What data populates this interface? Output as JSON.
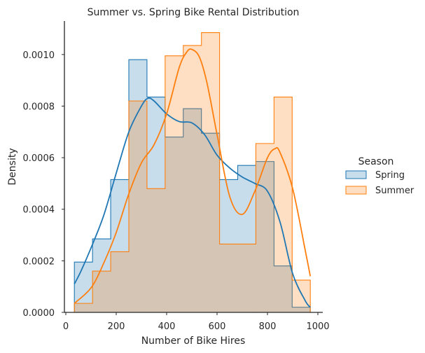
{
  "chart_data": {
    "type": "histogram",
    "title": "Summer vs. Spring Bike Rental Distribution",
    "xlabel": "Number of Bike Hires",
    "ylabel": "Density",
    "xlim": [
      0,
      1000
    ],
    "ylim": [
      0,
      0.00113
    ],
    "x_ticks": [
      0,
      200,
      400,
      600,
      800,
      1000
    ],
    "x_tick_labels": [
      "0",
      "200",
      "400",
      "600",
      "800",
      "1000"
    ],
    "y_ticks": [
      0,
      0.0002,
      0.0004,
      0.0006,
      0.0008,
      0.001
    ],
    "y_tick_labels": [
      "0.0000",
      "0.0002",
      "0.0004",
      "0.0006",
      "0.0008",
      "0.0010"
    ],
    "bin_edges": [
      34,
      106,
      178,
      250,
      322,
      394,
      466,
      538,
      610,
      682,
      754,
      826,
      898,
      970
    ],
    "legend": {
      "title": "Season",
      "placement": "right"
    },
    "grid": false,
    "series": [
      {
        "name": "Spring",
        "color": "#1f77b4",
        "hist_density": [
          0.000195,
          0.000285,
          0.000515,
          0.00098,
          0.000835,
          0.00068,
          0.00079,
          0.000695,
          0.000515,
          0.00057,
          0.000585,
          0.00018,
          2e-05
        ],
        "kde_x": [
          34,
          60,
          100,
          150,
          200,
          250,
          300,
          325,
          350,
          400,
          450,
          500,
          550,
          600,
          650,
          700,
          750,
          800,
          850,
          900,
          950,
          970
        ],
        "kde_y": [
          0.00011,
          0.00016,
          0.00025,
          0.000375,
          0.00054,
          0.0007,
          0.0008,
          0.00083,
          0.00082,
          0.00077,
          0.00074,
          0.000735,
          0.00069,
          0.00061,
          0.00056,
          0.000525,
          0.0005,
          0.00047,
          0.00035,
          0.00015,
          4.5e-05,
          2e-05
        ]
      },
      {
        "name": "Summer",
        "color": "#ff7f0e",
        "hist_density": [
          3.5e-05,
          0.00016,
          0.000235,
          0.00082,
          0.00048,
          0.000995,
          0.001035,
          0.001085,
          0.000265,
          0.000265,
          0.000655,
          0.000835,
          0.000125
        ],
        "kde_x": [
          34,
          100,
          150,
          200,
          250,
          300,
          350,
          400,
          450,
          480,
          500,
          530,
          560,
          600,
          650,
          700,
          750,
          800,
          830,
          850,
          900,
          950,
          970
        ],
        "kde_y": [
          3.5e-05,
          9.5e-05,
          0.00019,
          0.00031,
          0.00046,
          0.00058,
          0.00065,
          0.00077,
          0.00095,
          0.00101,
          0.00102,
          0.00099,
          0.00089,
          0.00069,
          0.00045,
          0.00038,
          0.00047,
          0.0006,
          0.000635,
          0.00062,
          0.00048,
          0.00024,
          0.00014
        ]
      }
    ]
  }
}
